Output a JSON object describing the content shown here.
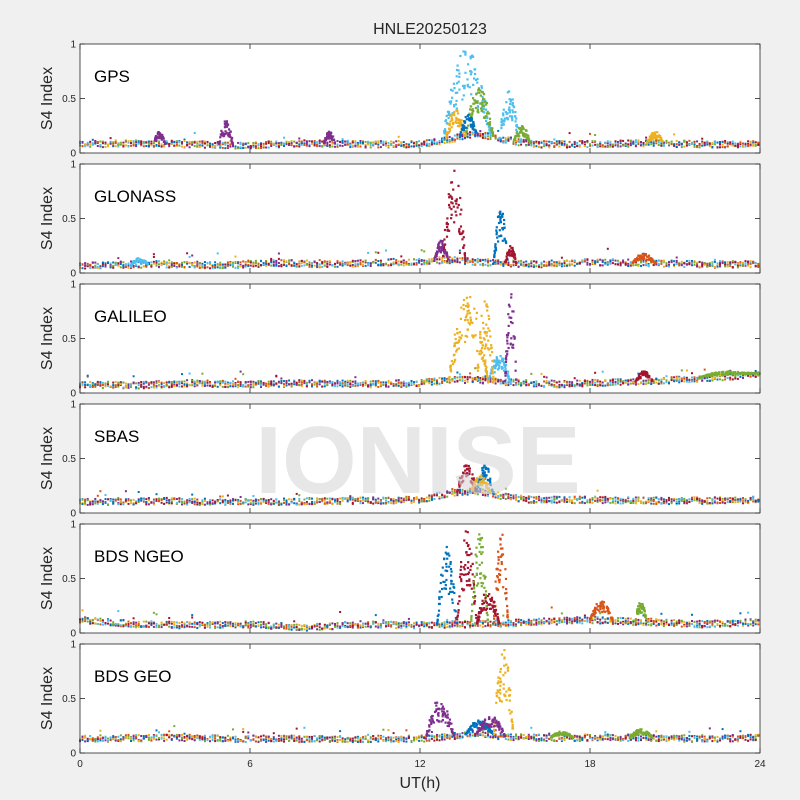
{
  "figure": {
    "title": "HNLE20250123",
    "watermark": "IONISE",
    "xlabel": "UT(h)",
    "background": "#f0f0f0",
    "axes_background": "#ffffff"
  },
  "chart_data": {
    "type": "scatter",
    "xlim": [
      0,
      24
    ],
    "ylim": [
      0,
      1
    ],
    "x_ticks": [
      0,
      6,
      12,
      18,
      24
    ],
    "x_tick_labels": [
      "0",
      "6",
      "12",
      "18",
      "24"
    ],
    "y_ticks": [
      0,
      0.5,
      1
    ],
    "y_tick_labels": [
      "0",
      "0.5",
      "1"
    ],
    "ylabel": "S4 Index",
    "xlabel": "UT(h)",
    "grid": false,
    "legend": "none",
    "series_colors": [
      "#0072BD",
      "#D95319",
      "#EDB120",
      "#7E2F8E",
      "#77AC30",
      "#4DBEEE",
      "#A2142F"
    ],
    "panels": [
      {
        "label": "GPS",
        "baseline": [
          [
            0,
            0.08
          ],
          [
            2,
            0.09
          ],
          [
            4,
            0.08
          ],
          [
            6,
            0.07
          ],
          [
            8,
            0.09
          ],
          [
            10,
            0.08
          ],
          [
            12,
            0.08
          ],
          [
            13,
            0.12
          ],
          [
            14,
            0.18
          ],
          [
            15,
            0.12
          ],
          [
            16,
            0.08
          ],
          [
            18,
            0.08
          ],
          [
            20,
            0.09
          ],
          [
            22,
            0.08
          ],
          [
            24,
            0.08
          ]
        ],
        "bursts": [
          {
            "x": [
              12.8,
              14.5
            ],
            "peak": 0.95,
            "color": "#4DBEEE"
          },
          {
            "x": [
              12.9,
              13.6
            ],
            "peak": 0.4,
            "color": "#EDB120"
          },
          {
            "x": [
              13.6,
              14.6
            ],
            "peak": 0.6,
            "color": "#77AC30"
          },
          {
            "x": [
              14.8,
              15.5
            ],
            "peak": 0.6,
            "color": "#4DBEEE"
          },
          {
            "x": [
              13.4,
              14.0
            ],
            "peak": 0.35,
            "color": "#0072BD"
          },
          {
            "x": [
              4.9,
              5.4
            ],
            "peak": 0.3,
            "color": "#7E2F8E"
          },
          {
            "x": [
              2.6,
              3.0
            ],
            "peak": 0.2,
            "color": "#7E2F8E"
          },
          {
            "x": [
              8.6,
              9.0
            ],
            "peak": 0.2,
            "color": "#7E2F8E"
          },
          {
            "x": [
              20.0,
              20.6
            ],
            "peak": 0.2,
            "color": "#EDB120"
          },
          {
            "x": [
              15.3,
              15.9
            ],
            "peak": 0.25,
            "color": "#77AC30"
          }
        ]
      },
      {
        "label": "GLONASS",
        "baseline": [
          [
            0,
            0.07
          ],
          [
            3,
            0.08
          ],
          [
            5,
            0.07
          ],
          [
            7,
            0.09
          ],
          [
            9,
            0.08
          ],
          [
            11,
            0.1
          ],
          [
            12,
            0.1
          ],
          [
            13,
            0.12
          ],
          [
            14,
            0.1
          ],
          [
            16,
            0.08
          ],
          [
            18,
            0.1
          ],
          [
            20,
            0.09
          ],
          [
            22,
            0.08
          ],
          [
            24,
            0.08
          ]
        ],
        "bursts": [
          {
            "x": [
              12.8,
              13.6
            ],
            "peak": 0.95,
            "color": "#A2142F"
          },
          {
            "x": [
              14.6,
              15.1
            ],
            "peak": 0.6,
            "color": "#0072BD"
          },
          {
            "x": [
              12.5,
              13.0
            ],
            "peak": 0.3,
            "color": "#7E2F8E"
          },
          {
            "x": [
              15.0,
              15.4
            ],
            "peak": 0.25,
            "color": "#A2142F"
          },
          {
            "x": [
              19.5,
              20.3
            ],
            "peak": 0.18,
            "color": "#D95319"
          },
          {
            "x": [
              1.8,
              2.4
            ],
            "peak": 0.14,
            "color": "#4DBEEE"
          }
        ]
      },
      {
        "label": "GALILEO",
        "baseline": [
          [
            0,
            0.08
          ],
          [
            2,
            0.07
          ],
          [
            4,
            0.09
          ],
          [
            6,
            0.08
          ],
          [
            8,
            0.09
          ],
          [
            10,
            0.08
          ],
          [
            12,
            0.09
          ],
          [
            13,
            0.12
          ],
          [
            14,
            0.12
          ],
          [
            15,
            0.1
          ],
          [
            17,
            0.08
          ],
          [
            19,
            0.1
          ],
          [
            21,
            0.12
          ],
          [
            23,
            0.15
          ],
          [
            24,
            0.18
          ]
        ],
        "bursts": [
          {
            "x": [
              13.0,
              14.4
            ],
            "peak": 0.9,
            "color": "#EDB120"
          },
          {
            "x": [
              14.4,
              15.2
            ],
            "peak": 0.35,
            "color": "#4DBEEE"
          },
          {
            "x": [
              15.0,
              15.4
            ],
            "peak": 0.95,
            "color": "#7E2F8E"
          },
          {
            "x": [
              14.0,
              14.6
            ],
            "peak": 0.85,
            "color": "#EDB120"
          },
          {
            "x": [
              19.6,
              20.2
            ],
            "peak": 0.2,
            "color": "#A2142F"
          },
          {
            "x": [
              21.8,
              24.0
            ],
            "peak": 0.2,
            "color": "#77AC30"
          }
        ]
      },
      {
        "label": "SBAS",
        "baseline": [
          [
            0,
            0.1
          ],
          [
            3,
            0.11
          ],
          [
            6,
            0.1
          ],
          [
            9,
            0.11
          ],
          [
            12,
            0.12
          ],
          [
            13,
            0.18
          ],
          [
            14,
            0.2
          ],
          [
            15,
            0.15
          ],
          [
            16,
            0.12
          ],
          [
            18,
            0.12
          ],
          [
            21,
            0.11
          ],
          [
            24,
            0.12
          ]
        ],
        "bursts": [
          {
            "x": [
              13.3,
              14.0
            ],
            "peak": 0.45,
            "color": "#A2142F"
          },
          {
            "x": [
              14.0,
              14.6
            ],
            "peak": 0.45,
            "color": "#0072BD"
          },
          {
            "x": [
              13.8,
              14.5
            ],
            "peak": 0.35,
            "color": "#EDB120"
          }
        ]
      },
      {
        "label": "BDS NGEO",
        "baseline": [
          [
            0,
            0.12
          ],
          [
            2,
            0.08
          ],
          [
            4,
            0.07
          ],
          [
            6,
            0.08
          ],
          [
            8,
            0.05
          ],
          [
            10,
            0.08
          ],
          [
            12,
            0.07
          ],
          [
            13,
            0.08
          ],
          [
            14,
            0.08
          ],
          [
            16,
            0.1
          ],
          [
            18,
            0.12
          ],
          [
            20,
            0.1
          ],
          [
            22,
            0.08
          ],
          [
            24,
            0.1
          ]
        ],
        "bursts": [
          {
            "x": [
              12.6,
              13.3
            ],
            "peak": 0.8,
            "color": "#0072BD"
          },
          {
            "x": [
              13.3,
              14.0
            ],
            "peak": 0.95,
            "color": "#A2142F"
          },
          {
            "x": [
              13.8,
              14.4
            ],
            "peak": 0.95,
            "color": "#77AC30"
          },
          {
            "x": [
              14.6,
              15.1
            ],
            "peak": 1.0,
            "color": "#D95319"
          },
          {
            "x": [
              14.0,
              14.8
            ],
            "peak": 0.4,
            "color": "#A2142F"
          },
          {
            "x": [
              18.0,
              18.8
            ],
            "peak": 0.3,
            "color": "#D95319"
          },
          {
            "x": [
              19.6,
              20.0
            ],
            "peak": 0.3,
            "color": "#77AC30"
          }
        ]
      },
      {
        "label": "BDS GEO",
        "baseline": [
          [
            0,
            0.13
          ],
          [
            3,
            0.14
          ],
          [
            6,
            0.13
          ],
          [
            9,
            0.13
          ],
          [
            12,
            0.13
          ],
          [
            13,
            0.15
          ],
          [
            14,
            0.18
          ],
          [
            15,
            0.15
          ],
          [
            16,
            0.14
          ],
          [
            18,
            0.14
          ],
          [
            20,
            0.14
          ],
          [
            22,
            0.13
          ],
          [
            24,
            0.14
          ]
        ],
        "bursts": [
          {
            "x": [
              12.2,
              13.2
            ],
            "peak": 0.5,
            "color": "#7E2F8E"
          },
          {
            "x": [
              13.6,
              14.6
            ],
            "peak": 0.3,
            "color": "#0072BD"
          },
          {
            "x": [
              14.6,
              15.3
            ],
            "peak": 0.95,
            "color": "#EDB120"
          },
          {
            "x": [
              14.0,
              15.0
            ],
            "peak": 0.35,
            "color": "#7E2F8E"
          },
          {
            "x": [
              16.6,
              17.4
            ],
            "peak": 0.2,
            "color": "#77AC30"
          },
          {
            "x": [
              19.4,
              20.2
            ],
            "peak": 0.22,
            "color": "#77AC30"
          }
        ]
      }
    ]
  }
}
